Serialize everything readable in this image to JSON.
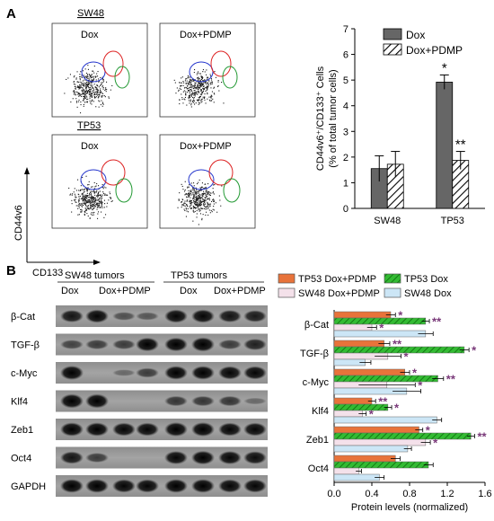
{
  "panel_a": {
    "label": "A",
    "flow": {
      "groups": [
        {
          "cell_line": "SW48",
          "conditions": [
            "Dox",
            "Dox+PDMP"
          ]
        },
        {
          "cell_line": "TP53",
          "conditions": [
            "Dox",
            "Dox+PDMP"
          ]
        }
      ],
      "y_axis_label": "CD44v6",
      "x_axis_label": "CD133",
      "gate_colors": [
        "#2233cc",
        "#dd2222",
        "#229933"
      ]
    },
    "chart_data": {
      "type": "bar",
      "categories": [
        "SW48",
        "TP53"
      ],
      "series": [
        {
          "name": "Dox",
          "values": [
            1.55,
            4.92
          ],
          "errors": [
            0.5,
            0.28
          ],
          "color": "#666666",
          "pattern": "solid"
        },
        {
          "name": "Dox+PDMP",
          "values": [
            1.72,
            1.87
          ],
          "errors": [
            0.5,
            0.35
          ],
          "color": "#ffffff",
          "pattern": "hatch"
        }
      ],
      "significance": [
        {
          "category": "TP53",
          "series": "Dox",
          "mark": "*"
        },
        {
          "category": "TP53",
          "series": "Dox+PDMP",
          "mark": "**"
        }
      ],
      "ylabel_line1": "CD44v6⁺/CD133⁺ Cells",
      "ylabel_line2": "(% of total tumor cells)",
      "ylim": [
        0,
        7
      ],
      "yticks": [
        0,
        1,
        2,
        3,
        4,
        5,
        6,
        7
      ],
      "legend_position": "top-right"
    }
  },
  "panel_b": {
    "label": "B",
    "blot": {
      "group_labels": [
        "SW48 tumors",
        "TP53 tumors"
      ],
      "lane_labels": [
        "Dox",
        "Dox+PDMP",
        "Dox",
        "Dox+PDMP"
      ],
      "proteins": [
        "β-Cat",
        "TGF-β",
        "c-Myc",
        "Klf4",
        "Zeb1",
        "Oct4",
        "GAPDH"
      ],
      "band_intensity": [
        [
          0.8,
          0.9,
          0.35,
          0.3,
          0.9,
          0.9,
          0.8,
          0.75
        ],
        [
          0.45,
          0.5,
          0.5,
          0.95,
          0.95,
          1.0,
          0.5,
          0.7
        ],
        [
          1.0,
          0.0,
          0.15,
          0.5,
          0.95,
          0.95,
          0.9,
          0.9
        ],
        [
          1.0,
          1.0,
          0.0,
          0.0,
          0.55,
          0.55,
          0.55,
          0.15
        ],
        [
          0.95,
          0.95,
          0.9,
          0.9,
          1.0,
          1.0,
          0.9,
          0.9
        ],
        [
          0.8,
          0.5,
          0.0,
          0.0,
          0.9,
          0.95,
          0.9,
          0.85
        ],
        [
          0.95,
          0.95,
          0.9,
          0.9,
          0.95,
          0.95,
          0.9,
          0.9
        ]
      ]
    },
    "chart_data": {
      "type": "bar",
      "orientation": "horizontal",
      "categories": [
        "β-Cat",
        "TGF-β",
        "c-Myc",
        "Klf4",
        "Zeb1",
        "Oct4"
      ],
      "series": [
        {
          "name": "TP53 Dox+PDMP",
          "color": "#e8733a",
          "pattern": "solid",
          "values": [
            0.6,
            0.53,
            0.75,
            0.4,
            0.9,
            0.65
          ],
          "errors": [
            0.05,
            0.06,
            0.05,
            0.04,
            0.04,
            0.05
          ]
        },
        {
          "name": "TP53 Dox",
          "color": "#33bb33",
          "pattern": "hatch",
          "values": [
            0.97,
            1.38,
            1.1,
            0.57,
            1.45,
            1.0
          ],
          "errors": [
            0.04,
            0.05,
            0.06,
            0.04,
            0.04,
            0.05
          ]
        },
        {
          "name": "SW48 Dox+PDMP",
          "color": "#f4e1ea",
          "pattern": "solid",
          "values": [
            0.4,
            0.57,
            0.56,
            0.3,
            0.97,
            0.26
          ],
          "errors": [
            0.05,
            0.14,
            0.3,
            0.04,
            0.05,
            0.03
          ]
        },
        {
          "name": "SW48 Dox",
          "color": "#cce6f6",
          "pattern": "solid",
          "values": [
            0.97,
            0.33,
            0.77,
            1.09,
            0.78,
            0.48
          ],
          "errors": [
            0.08,
            0.06,
            0.15,
            0.05,
            0.04,
            0.05
          ]
        }
      ],
      "significance_marks": [
        "*",
        "**",
        "*",
        "**",
        "*",
        "*",
        "*",
        "**",
        "*",
        "**",
        "*",
        "*",
        "*",
        "**",
        "*"
      ],
      "xlabel": "Protein levels (normalized)",
      "xlim": [
        0,
        1.6
      ],
      "xticks": [
        "0.0",
        "0.4",
        "0.8",
        "1.2",
        "1.6"
      ],
      "star_color": "#7a3a7a",
      "legend_position": "top"
    }
  }
}
